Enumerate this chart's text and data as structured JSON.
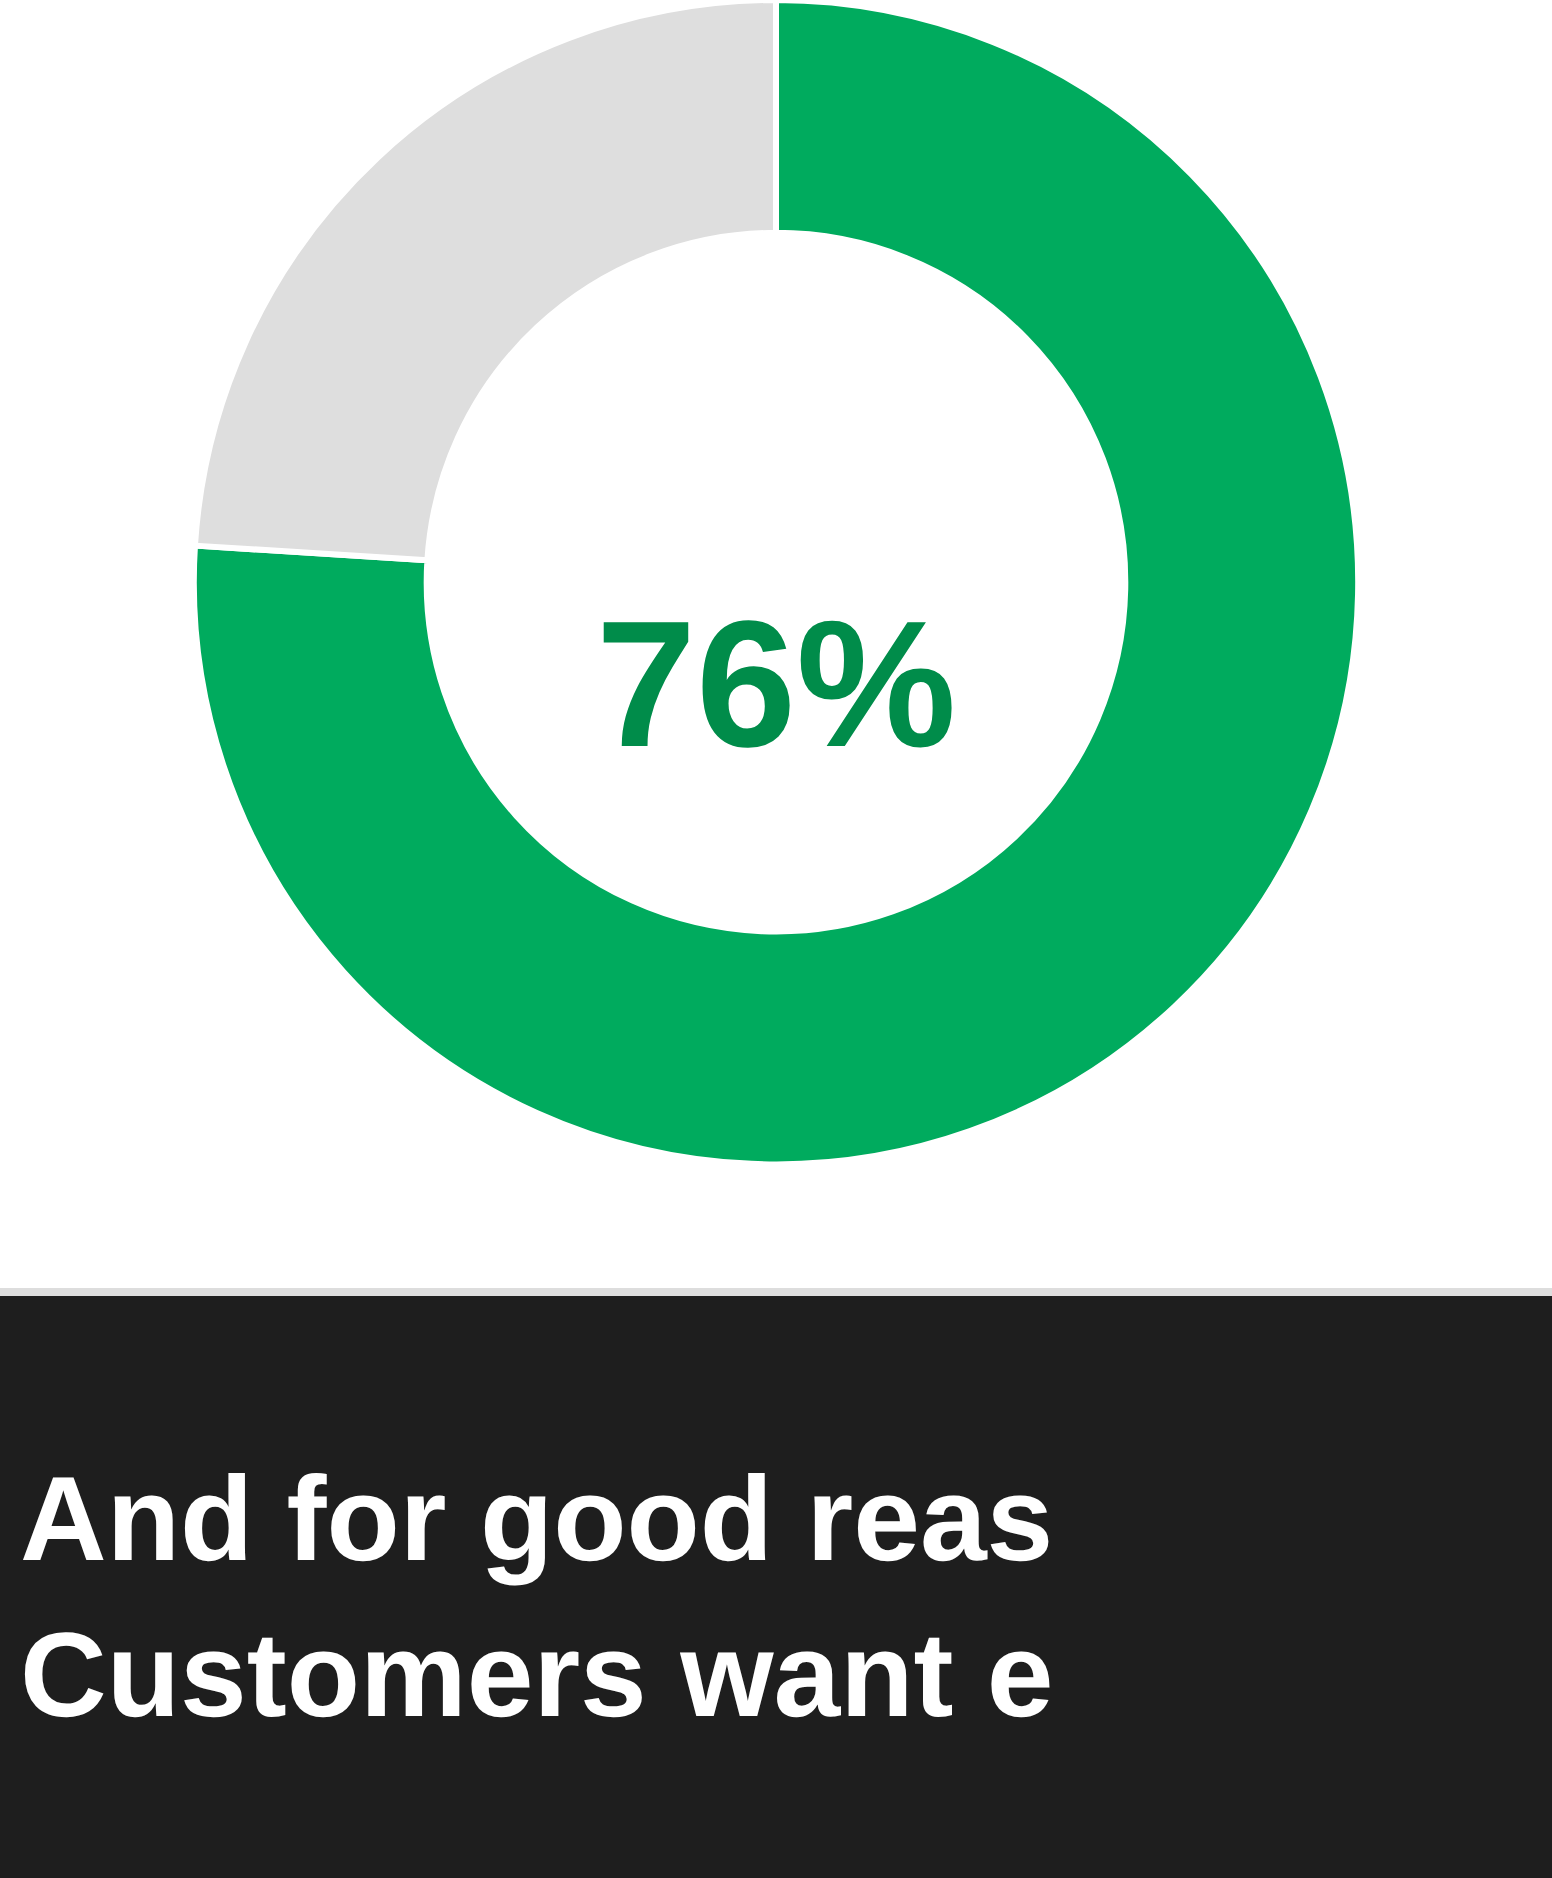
{
  "chart_data": {
    "type": "donut",
    "categories": [
      null,
      null
    ],
    "values": [
      76,
      24
    ],
    "colors": [
      "#00ab5e",
      "#dedede"
    ],
    "annotations": [
      "76%",
      "And for good reas\nCustomers want e"
    ]
  }
}
